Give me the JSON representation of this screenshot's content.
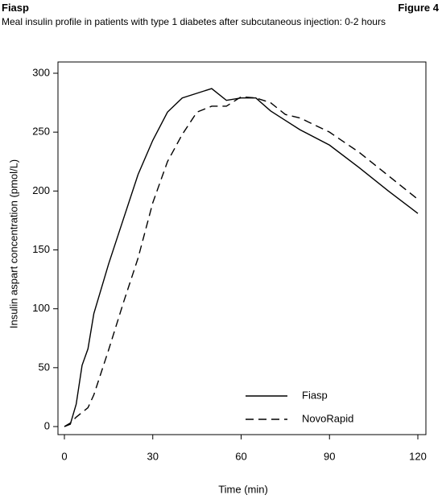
{
  "header": {
    "left": "Fiasp",
    "right": "Figure 4"
  },
  "chart_data": {
    "type": "line",
    "title": "Meal insulin profile in patients with type 1 diabetes after subcutaneous injection: 0-2 hours",
    "x_label": "Time (min)",
    "y_label": "Insulin aspart concentration (pmol/L)",
    "x": [
      0,
      2,
      4,
      6,
      8,
      10,
      15,
      20,
      25,
      30,
      35,
      40,
      45,
      50,
      55,
      60,
      65,
      70,
      75,
      80,
      90,
      100,
      110,
      120
    ],
    "series": [
      {
        "name": "Fiasp",
        "color": "#000000",
        "dash": "none",
        "values": [
          0,
          2,
          19,
          52,
          66,
          96,
          138,
          176,
          214,
          243,
          267,
          279,
          283,
          287,
          277,
          279,
          279,
          268,
          260,
          252,
          239,
          220,
          200,
          181
        ]
      },
      {
        "name": "NovoRapid",
        "color": "#000000",
        "dash": "10,6",
        "values": [
          0,
          3,
          8,
          12,
          16,
          27,
          65,
          105,
          143,
          190,
          225,
          248,
          267,
          272,
          272,
          280,
          279,
          275,
          265,
          262,
          250,
          233,
          213,
          193
        ]
      }
    ],
    "xlim": [
      0,
      120
    ],
    "xticks": [
      0,
      30,
      60,
      90,
      120
    ],
    "ylim": [
      0,
      300
    ],
    "yticks": [
      0,
      50,
      100,
      150,
      200,
      250,
      300
    ],
    "legend": "lower right"
  }
}
